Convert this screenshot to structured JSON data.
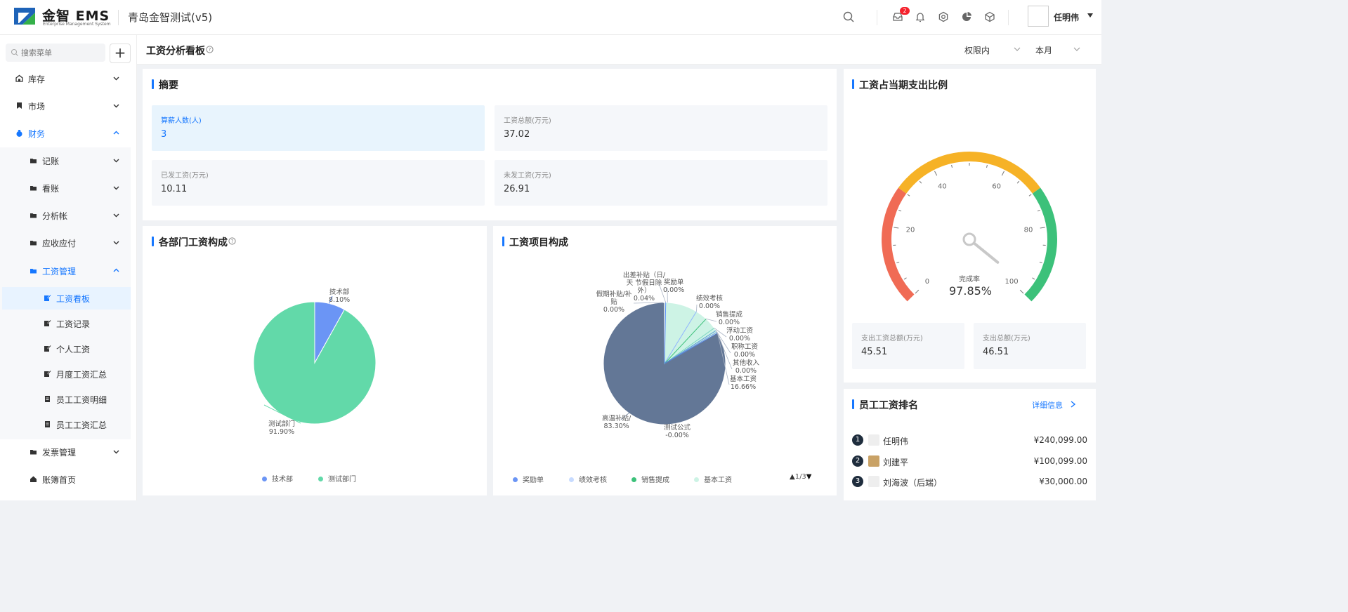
{
  "header": {
    "brand": "金智 EMS",
    "brand_sub": "Enterprise Management System",
    "company": "青岛金智测试(v5)",
    "notification_count": "2",
    "user_name": "任明伟"
  },
  "sidebar": {
    "search_placeholder": "搜索菜单",
    "add_label": "+",
    "items": [
      {
        "label": "库存",
        "icon": "warehouse-icon"
      },
      {
        "label": "市场",
        "icon": "bookmark-icon"
      },
      {
        "label": "财务",
        "icon": "money-bag-icon",
        "expanded": true
      },
      {
        "label": "记账",
        "icon": "folder-icon"
      },
      {
        "label": "看账",
        "icon": "folder-icon"
      },
      {
        "label": "分析帐",
        "icon": "folder-icon"
      },
      {
        "label": "应收应付",
        "icon": "folder-icon"
      },
      {
        "label": "工资管理",
        "icon": "folder-icon",
        "expanded": true
      },
      {
        "label": "工资看板",
        "icon": "edit-icon",
        "selected": true
      },
      {
        "label": "工资记录",
        "icon": "edit-icon"
      },
      {
        "label": "个人工资",
        "icon": "edit-icon"
      },
      {
        "label": "月度工资汇总",
        "icon": "edit-icon"
      },
      {
        "label": "员工工资明细",
        "icon": "document-icon"
      },
      {
        "label": "员工工资汇总",
        "icon": "document-icon"
      },
      {
        "label": "发票管理",
        "icon": "folder-icon"
      },
      {
        "label": "账簿首页",
        "icon": "home-icon"
      }
    ]
  },
  "page": {
    "title": "工资分析看板",
    "filter_scope": "权限内",
    "filter_period": "本月"
  },
  "summary": {
    "title": "摘要",
    "stats": [
      {
        "label": "算薪人数(人)",
        "value": "3"
      },
      {
        "label": "工资总额(万元)",
        "value": "37.02"
      },
      {
        "label": "已发工资(万元)",
        "value": "10.11"
      },
      {
        "label": "未发工资(万元)",
        "value": "26.91"
      }
    ]
  },
  "gauge_panel": {
    "title": "工资占当期支出比例",
    "center_label": "完成率",
    "value_text": "97.85%",
    "ticks": [
      "0",
      "20",
      "40",
      "60",
      "80",
      "100"
    ],
    "stats": [
      {
        "label": "支出工资总额(万元)",
        "value": "45.51"
      },
      {
        "label": "支出总额(万元)",
        "value": "46.51"
      }
    ],
    "colors": {
      "low": "#f06b55",
      "mid": "#f6b226",
      "high": "#3cc17a"
    }
  },
  "dept_panel": {
    "title": "各部门工资构成",
    "labels": [
      {
        "name": "技术部",
        "pct": "8.10%"
      },
      {
        "name": "测试部门",
        "pct": "91.90%"
      }
    ],
    "legend": [
      "技术部",
      "测试部门"
    ]
  },
  "item_panel": {
    "title": "工资项目构成",
    "labels": [
      {
        "name": "出差补贴（日/天 节假日除外）",
        "pct": "0.04%"
      },
      {
        "name": "奖励单",
        "pct": "0.00%"
      },
      {
        "name": "假期补贴/补贴",
        "pct": "0.00%"
      },
      {
        "name": "绩效考核",
        "pct": "0.00%"
      },
      {
        "name": "销售提成",
        "pct": "0.00%"
      },
      {
        "name": "浮动工资",
        "pct": "0.00%"
      },
      {
        "name": "职称工资",
        "pct": "0.00%"
      },
      {
        "name": "其他收入",
        "pct": "0.00%"
      },
      {
        "name": "基本工资",
        "pct": "16.66%"
      },
      {
        "name": "测试公式",
        "pct": "-0.00%"
      },
      {
        "name": "高温补贴/",
        "pct": "83.30%"
      }
    ],
    "legend": [
      "奖励单",
      "绩效考核",
      "销售提成",
      "基本工资"
    ],
    "pager": "1/3"
  },
  "rank_panel": {
    "title": "员工工资排名",
    "detail_link": "详细信息",
    "rows": [
      {
        "rank": "1",
        "name": "任明伟",
        "amount": "¥240,099.00"
      },
      {
        "rank": "2",
        "name": "刘建平",
        "amount": "¥100,099.00"
      },
      {
        "rank": "3",
        "name": "刘海波（后端）",
        "amount": "¥30,000.00"
      }
    ]
  },
  "chart_data": [
    {
      "type": "pie",
      "title": "各部门工资构成",
      "categories": [
        "技术部",
        "测试部门"
      ],
      "values": [
        8.1,
        91.9
      ],
      "colors": [
        "#6b95f5",
        "#62d9a9"
      ],
      "legend": "bottom"
    },
    {
      "type": "pie",
      "title": "工资项目构成",
      "categories": [
        "出差补贴（日/天 节假日除外）",
        "奖励单",
        "假期补贴/补贴",
        "绩效考核",
        "销售提成",
        "浮动工资",
        "职称工资",
        "其他收入",
        "基本工资",
        "测试公式",
        "高温补贴/"
      ],
      "values": [
        0.04,
        0.0,
        0.0,
        0.0,
        0.0,
        0.0,
        0.0,
        0.0,
        16.66,
        -0.0,
        83.3
      ],
      "colors": {
        "基本工资": "#cdf3e5",
        "高温补贴/": "#637796"
      },
      "legend": "bottom"
    },
    {
      "type": "gauge",
      "title": "工资占当期支出比例",
      "value": 97.85,
      "range": [
        0,
        100
      ]
    }
  ]
}
